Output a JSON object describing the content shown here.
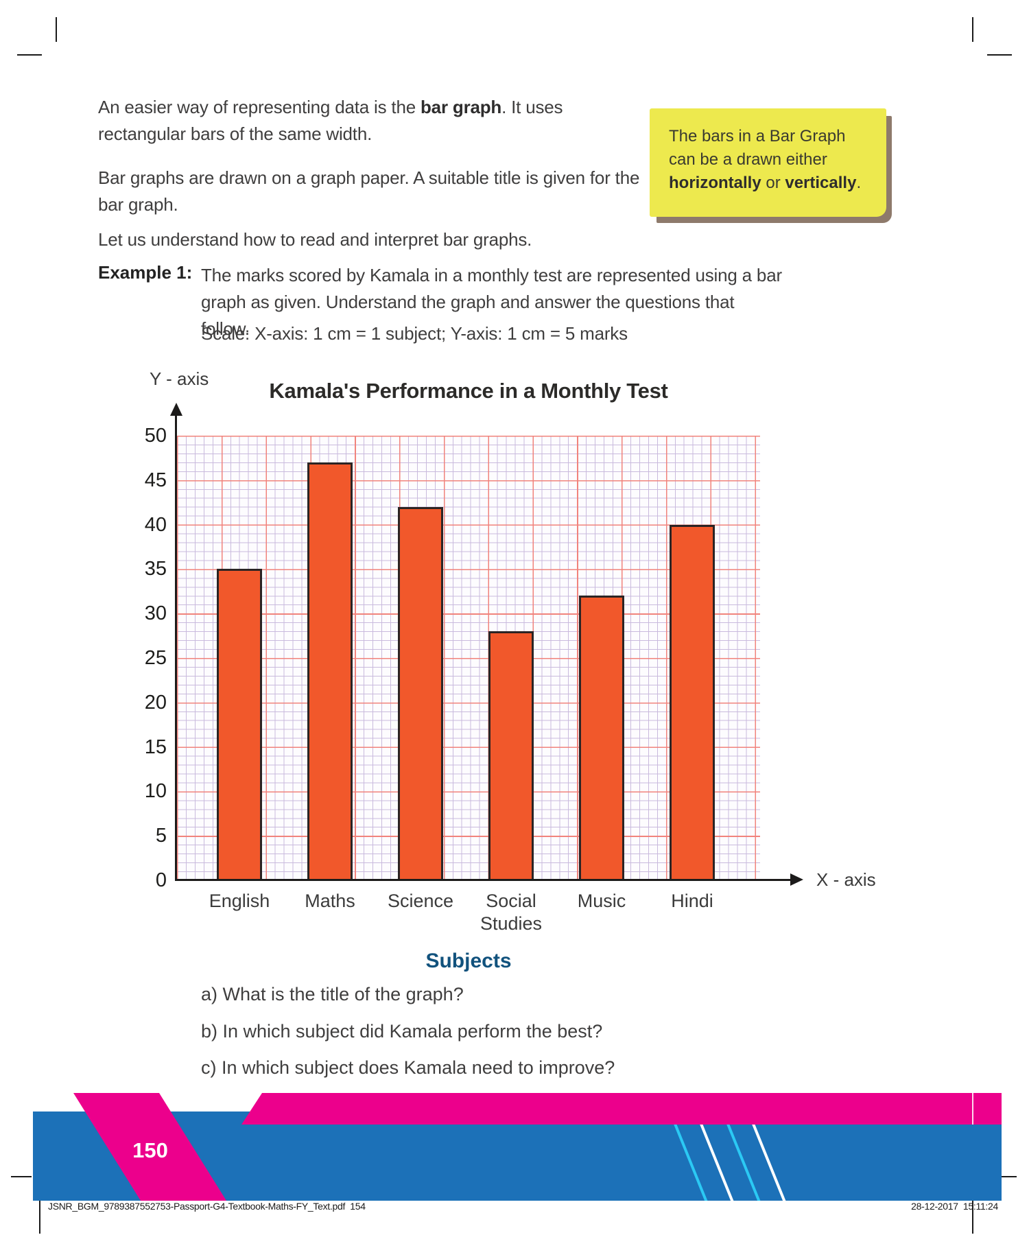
{
  "page": {
    "para1_pre": "An easier way of representing data is the ",
    "para1_bold": "bar graph",
    "para1_post": ". It uses rectangular bars of the same width.",
    "para2": "Bar graphs are drawn on a graph paper. A suitable title is given for the bar graph.",
    "para3": "Let us understand how to read and interpret bar graphs.",
    "example_label": "Example 1:",
    "example_text": "The marks scored by Kamala in a monthly test are represented using a bar graph as given. Understand the graph and answer the questions that follow.",
    "scale_line": "Scale: X-axis: 1 cm = 1 subject; Y-axis: 1 cm = 5 marks"
  },
  "note": {
    "pre": "The bars in a Bar Graph can be a drawn either ",
    "bold1": "horizontally",
    "mid": " or ",
    "bold2": "vertically",
    "post": ".",
    "bg_color": "#ede94e",
    "shadow_color": "#8e7a6b"
  },
  "chart_data": {
    "type": "bar",
    "title": "Kamala's Performance in a Monthly Test",
    "categories": [
      "English",
      "Maths",
      "Science",
      "Social Studies",
      "Music",
      "Hindi"
    ],
    "values": [
      35,
      47,
      42,
      28,
      32,
      40
    ],
    "xlabel": "Subjects",
    "ylabel_ticks": [
      0,
      5,
      10,
      15,
      20,
      25,
      30,
      35,
      40,
      45,
      50
    ],
    "x_axis_label": "X - axis",
    "y_axis_label": "Y - axis",
    "ylim": [
      0,
      50
    ],
    "ytick_step": 5,
    "grid": true,
    "legend": "none",
    "bar_color": "#f1582b",
    "bar_border_color": "#2b2424",
    "grid_minor_color": "#c9badd",
    "grid_major_color": "#f1837c",
    "xlabel_color": "#11527d"
  },
  "questions": [
    "a) What is the title of the graph?",
    "b) In which subject did Kamala perform the best?",
    "c) In which subject does Kamala need to improve?"
  ],
  "footer": {
    "page_number": "150",
    "file_line": "JSNR_BGM_9789387552753-Passport-G4-Textbook-Maths-FY_Text.pdf  154",
    "datetime": "28-12-2017  15:11:24",
    "blue_color": "#1c71b8",
    "pink_color": "#ec008c",
    "cyan_color": "#2bc9f4"
  }
}
